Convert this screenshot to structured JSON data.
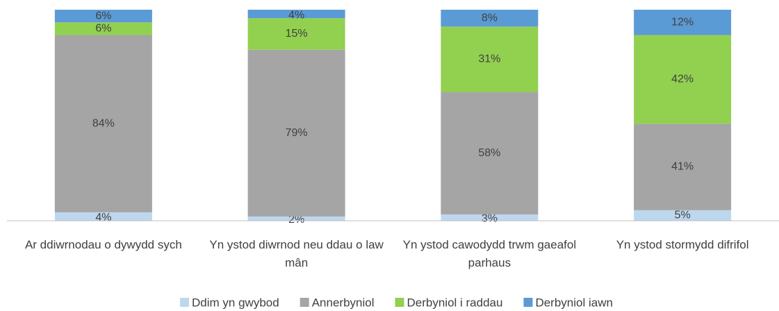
{
  "chart_data": {
    "type": "stacked-bar",
    "categories": [
      "Ar ddiwrnodau o dywydd sych",
      "Yn ystod diwrnod neu ddau o law mân",
      "Yn ystod cawodydd trwm gaeafol parhaus",
      "Yn ystod stormydd difrifol"
    ],
    "series": [
      {
        "name": "Ddim yn gwybod",
        "color": "#bdd7ee",
        "values": [
          4,
          2,
          3,
          5
        ],
        "value_labels": [
          "4%",
          "2%",
          "3%",
          "5%"
        ]
      },
      {
        "name": "Annerbyniol",
        "color": "#a5a5a5",
        "values": [
          84,
          79,
          58,
          41
        ],
        "value_labels": [
          "84%",
          "79%",
          "58%",
          "41%"
        ]
      },
      {
        "name": "Derbyniol i raddau",
        "color": "#92d050",
        "values": [
          6,
          15,
          31,
          42
        ],
        "value_labels": [
          "6%",
          "15%",
          "31%",
          "42%"
        ]
      },
      {
        "name": "Derbyniol iawn",
        "color": "#5b9bd5",
        "values": [
          6,
          4,
          8,
          12
        ],
        "value_labels": [
          "6%",
          "4%",
          "8%",
          "12%"
        ]
      }
    ],
    "ylim": [
      0,
      100
    ],
    "legend": "bottom"
  }
}
